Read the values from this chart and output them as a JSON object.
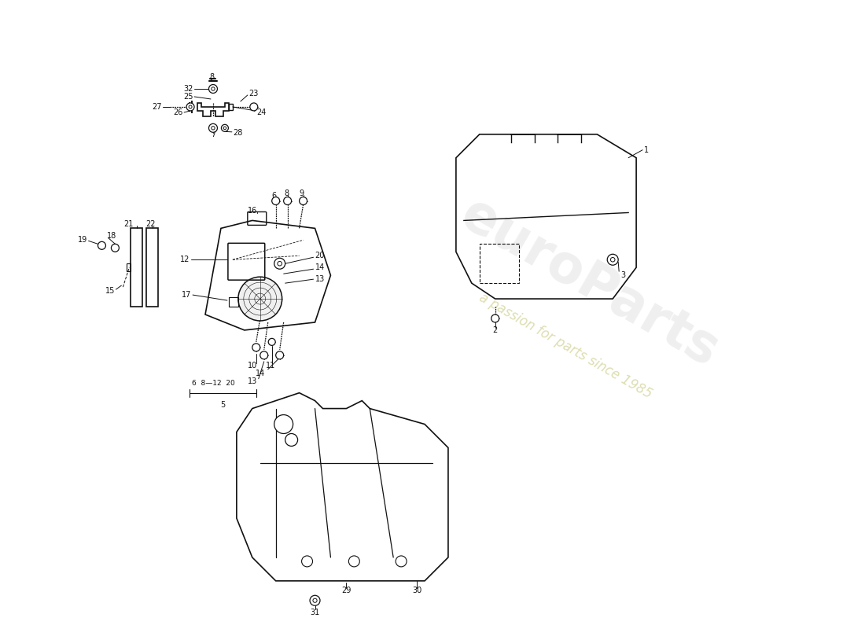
{
  "background_color": "#ffffff",
  "line_color": "#111111",
  "watermark_color1": "#cccccc",
  "watermark_color2": "#ddddaa",
  "fig_width": 11.0,
  "fig_height": 8.0,
  "dpi": 100
}
